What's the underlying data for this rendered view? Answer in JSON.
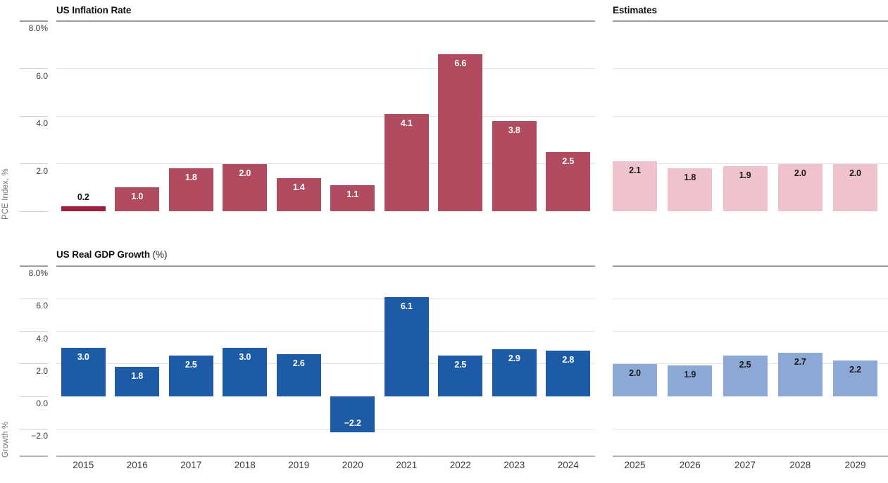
{
  "header": {
    "estimates_label": "Estimates"
  },
  "colors": {
    "inflation_bar": "#b14b60",
    "inflation_bar_first": "#a01f3d",
    "inflation_estimate_bar": "#eec3ce",
    "gdp_bar": "#1e5ba6",
    "gdp_estimate_bar": "#8ba9d4",
    "bar_label_on_dark": "#ffffff",
    "bar_label_on_light": "#1a1a1a",
    "bar_label_outside": "#111111",
    "grid_light": "#e3e3e3",
    "grid_dark": "#9c9c9c",
    "axis_line": "#b3b3b3",
    "tick_text": "#3a3a3a",
    "year_text": "#3a3a3a",
    "ylabel_text": "#757575"
  },
  "chart_data": [
    {
      "type": "bar",
      "title": "US Inflation Rate",
      "ylabel": "PCE Index, %",
      "ylim": [
        0,
        8
      ],
      "grid": true,
      "legend_position": "none",
      "categories": [
        "2015",
        "2016",
        "2017",
        "2018",
        "2019",
        "2020",
        "2021",
        "2022",
        "2023",
        "2024"
      ],
      "values": [
        0.2,
        1.0,
        1.8,
        2.0,
        1.4,
        1.1,
        4.1,
        6.6,
        3.8,
        2.5
      ],
      "estimates": {
        "categories": [
          "2025",
          "2026",
          "2027",
          "2028",
          "2029"
        ],
        "values": [
          2.1,
          1.8,
          1.9,
          2.0,
          2.0
        ]
      },
      "yticks": [
        {
          "v": 8,
          "label": "8.0%",
          "grid": true
        },
        {
          "v": 6,
          "label": "6.0",
          "grid": true
        },
        {
          "v": 4,
          "label": "4.0",
          "grid": true
        },
        {
          "v": 2,
          "label": "2.0",
          "grid": true
        },
        {
          "v": 0,
          "label": "",
          "grid": false
        }
      ]
    },
    {
      "type": "bar",
      "title": "US Real GDP Growth",
      "unit_suffix": "(%)",
      "ylabel": "Growth %",
      "ylim": [
        -2,
        8
      ],
      "grid": true,
      "legend_position": "none",
      "categories": [
        "2015",
        "2016",
        "2017",
        "2018",
        "2019",
        "2020",
        "2021",
        "2022",
        "2023",
        "2024"
      ],
      "values": [
        3.0,
        1.8,
        2.5,
        3.0,
        2.6,
        -2.2,
        6.1,
        2.5,
        2.9,
        2.8
      ],
      "estimates": {
        "categories": [
          "2025",
          "2026",
          "2027",
          "2028",
          "2029"
        ],
        "values": [
          2.0,
          1.9,
          2.5,
          2.7,
          2.2
        ]
      },
      "yticks": [
        {
          "v": 8,
          "label": "8.0%",
          "grid": true
        },
        {
          "v": 6,
          "label": "6.0",
          "grid": true
        },
        {
          "v": 4,
          "label": "4.0",
          "grid": true
        },
        {
          "v": 2,
          "label": "2.0",
          "grid": true
        },
        {
          "v": 0,
          "label": "0.0",
          "grid": false
        },
        {
          "v": -2,
          "label": "−2.0",
          "grid": true
        }
      ]
    }
  ]
}
